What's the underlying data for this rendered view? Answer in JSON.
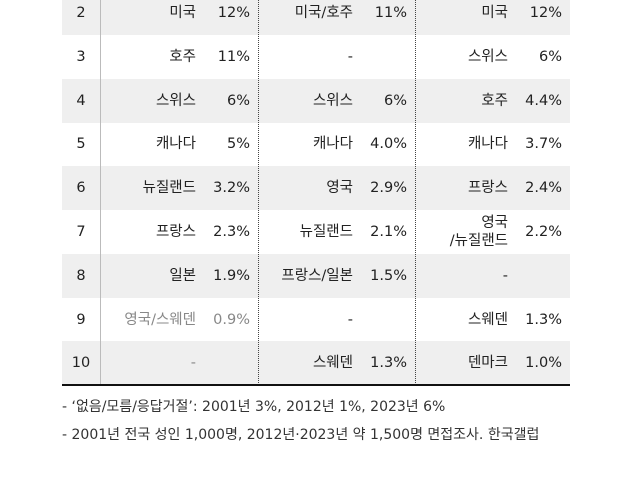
{
  "table": {
    "rows": [
      {
        "rank": "2",
        "groups": [
          [
            "미국",
            "12%"
          ],
          [
            "미국/호주",
            "11%"
          ],
          [
            "미국",
            "12%"
          ]
        ]
      },
      {
        "rank": "3",
        "groups": [
          [
            "호주",
            "11%"
          ],
          [
            "-"
          ],
          [
            "스위스",
            "6%"
          ]
        ]
      },
      {
        "rank": "4",
        "groups": [
          [
            "스위스",
            "6%"
          ],
          [
            "스위스",
            "6%"
          ],
          [
            "호주",
            "4.4%"
          ]
        ]
      },
      {
        "rank": "5",
        "groups": [
          [
            "캐나다",
            "5%"
          ],
          [
            "캐나다",
            "4.0%"
          ],
          [
            "캐나다",
            "3.7%"
          ]
        ]
      },
      {
        "rank": "6",
        "groups": [
          [
            "뉴질랜드",
            "3.2%"
          ],
          [
            "영국",
            "2.9%"
          ],
          [
            "프랑스",
            "2.4%"
          ]
        ]
      },
      {
        "rank": "7",
        "groups": [
          [
            "프랑스",
            "2.3%"
          ],
          [
            "뉴질랜드",
            "2.1%"
          ],
          [
            "영국\n/뉴질랜드",
            "2.2%"
          ]
        ]
      },
      {
        "rank": "8",
        "groups": [
          [
            "일본",
            "1.9%"
          ],
          [
            "프랑스/일본",
            "1.5%"
          ],
          [
            "-"
          ]
        ]
      },
      {
        "rank": "9",
        "groups": [
          [
            "영국/스웨덴",
            "0.9%"
          ],
          [
            "-"
          ],
          [
            "스웨덴",
            "1.3%"
          ]
        ]
      },
      {
        "rank": "10",
        "groups": [
          [
            "-"
          ],
          [
            "스웨덴",
            "1.3%"
          ],
          [
            "덴마크",
            "1.0%"
          ]
        ]
      }
    ]
  },
  "notes": [
    "- ‘없음/모름/응답거절’: 2001년 3%, 2012년 1%, 2023년 6%",
    "- 2001년 전국 성인 1,000명, 2012년·2023년 약 1,500명 면접조사. 한국갤럽"
  ]
}
